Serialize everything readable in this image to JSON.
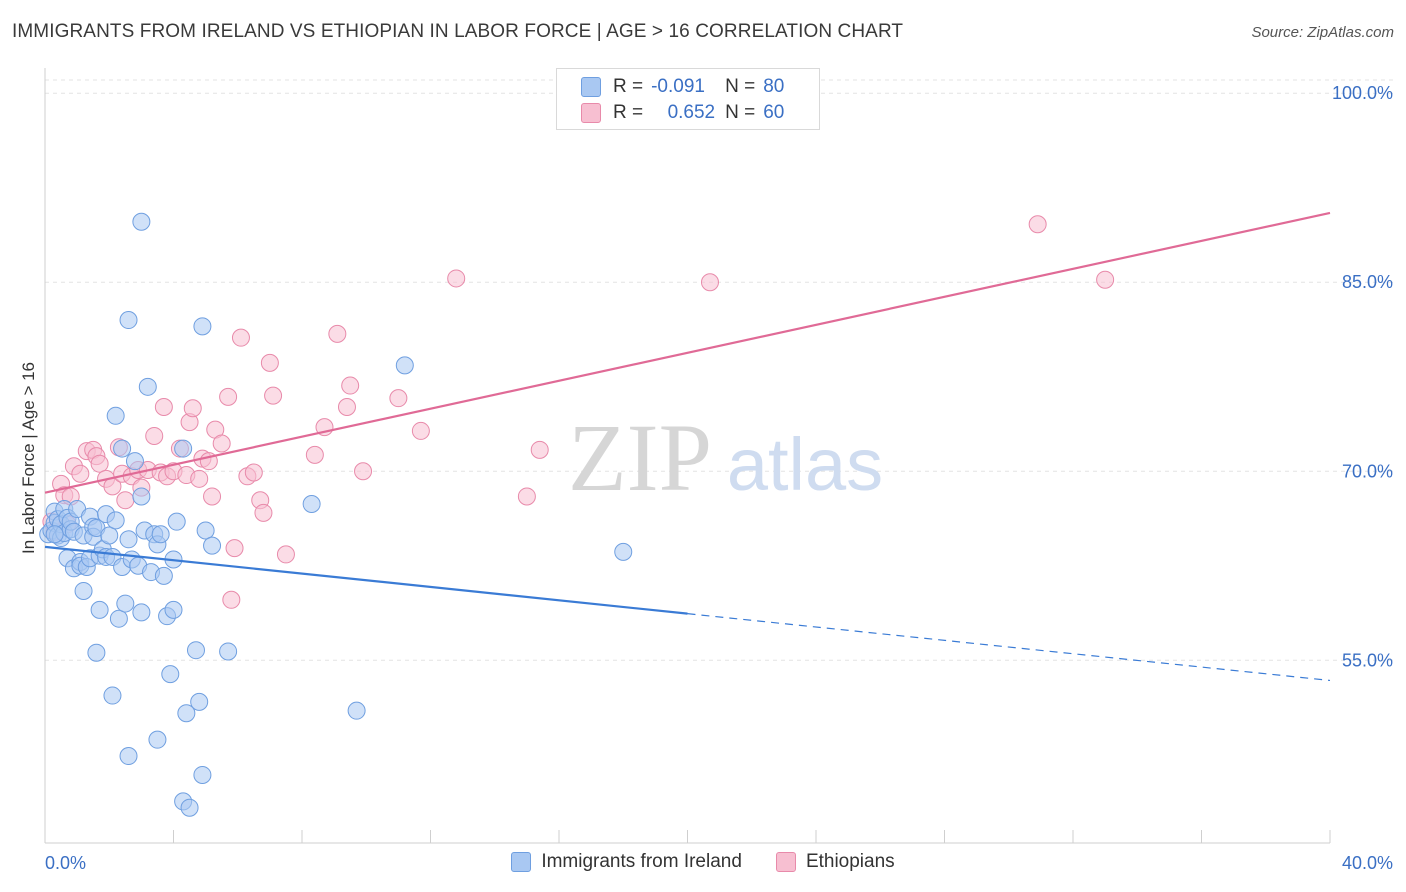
{
  "title": "IMMIGRANTS FROM IRELAND VS ETHIOPIAN IN LABOR FORCE | AGE > 16 CORRELATION CHART",
  "source": "Source: ZipAtlas.com",
  "watermark": {
    "zip": "ZIP",
    "atlas": "atlas"
  },
  "correlation_box": {
    "rows": [
      {
        "r_label": "R =",
        "r_value": "-0.091",
        "n_label": "N =",
        "n_value": "80",
        "color": "#a9c8f2",
        "border": "#6f9fe0"
      },
      {
        "r_label": "R =",
        "r_value": "0.652",
        "n_label": "N =",
        "n_value": "60",
        "color": "#f7bfd1",
        "border": "#e88aaa"
      }
    ]
  },
  "colors": {
    "blue": "#3a7bd5",
    "pink": "#e06a96",
    "blue_fill": "#a9c8f2",
    "pink_fill": "#f7bfd1",
    "axis_text": "#3a6fc4",
    "grid": "#e3e3e3"
  },
  "chart_data": {
    "type": "scatter",
    "title": "IMMIGRANTS FROM IRELAND VS ETHIOPIAN IN LABOR FORCE | AGE > 16 CORRELATION CHART",
    "xlabel": "",
    "ylabel": "In Labor Force | Age > 16",
    "xlim": [
      0,
      40
    ],
    "ylim": [
      40.5,
      102
    ],
    "x_tick_labels": [
      "0.0%",
      "40.0%"
    ],
    "y_ticks": [
      55,
      70,
      85,
      100
    ],
    "y_tick_labels": [
      "55.0%",
      "70.0%",
      "85.0%",
      "100.0%"
    ],
    "grid": true,
    "legend": "bottom-center",
    "series": [
      {
        "name": "Immigrants from Ireland",
        "color": "#3a7bd5",
        "trend": {
          "x": [
            0,
            20,
            40
          ],
          "y": [
            64.0,
            58.7,
            53.4
          ],
          "solid_until_x": 20
        },
        "points": [
          [
            0.1,
            65.0
          ],
          [
            0.2,
            65.3
          ],
          [
            0.3,
            66.8
          ],
          [
            0.3,
            65.9
          ],
          [
            0.4,
            64.9
          ],
          [
            0.4,
            66.2
          ],
          [
            0.5,
            64.7
          ],
          [
            0.5,
            65.8
          ],
          [
            0.6,
            67.0
          ],
          [
            0.6,
            65.1
          ],
          [
            0.7,
            66.3
          ],
          [
            0.7,
            63.1
          ],
          [
            0.8,
            65.4
          ],
          [
            0.8,
            66.0
          ],
          [
            0.9,
            65.2
          ],
          [
            0.9,
            62.3
          ],
          [
            1.0,
            67.0
          ],
          [
            1.1,
            62.8
          ],
          [
            1.1,
            62.5
          ],
          [
            1.2,
            60.5
          ],
          [
            1.2,
            64.9
          ],
          [
            1.3,
            62.4
          ],
          [
            1.4,
            66.4
          ],
          [
            1.4,
            63.1
          ],
          [
            1.5,
            65.6
          ],
          [
            1.5,
            64.8
          ],
          [
            1.6,
            65.5
          ],
          [
            1.6,
            55.6
          ],
          [
            1.7,
            63.3
          ],
          [
            1.7,
            59.0
          ],
          [
            1.8,
            63.8
          ],
          [
            1.9,
            63.2
          ],
          [
            1.9,
            66.6
          ],
          [
            2.0,
            64.9
          ],
          [
            2.1,
            63.2
          ],
          [
            2.1,
            52.2
          ],
          [
            2.2,
            66.1
          ],
          [
            2.2,
            74.4
          ],
          [
            2.3,
            58.3
          ],
          [
            2.4,
            62.4
          ],
          [
            2.4,
            71.8
          ],
          [
            2.5,
            59.5
          ],
          [
            2.6,
            64.6
          ],
          [
            2.6,
            47.4
          ],
          [
            2.7,
            63.0
          ],
          [
            2.8,
            70.8
          ],
          [
            2.9,
            62.5
          ],
          [
            3.0,
            68.0
          ],
          [
            3.0,
            58.8
          ],
          [
            3.1,
            65.3
          ],
          [
            3.2,
            76.7
          ],
          [
            3.3,
            62.0
          ],
          [
            3.4,
            65.0
          ],
          [
            3.5,
            64.2
          ],
          [
            3.5,
            48.7
          ],
          [
            3.6,
            65.0
          ],
          [
            3.7,
            61.7
          ],
          [
            3.8,
            58.5
          ],
          [
            3.9,
            53.9
          ],
          [
            4.0,
            63.0
          ],
          [
            4.0,
            59.0
          ],
          [
            4.1,
            66.0
          ],
          [
            4.3,
            71.8
          ],
          [
            4.3,
            43.8
          ],
          [
            4.4,
            50.8
          ],
          [
            4.5,
            43.3
          ],
          [
            4.7,
            55.8
          ],
          [
            4.8,
            51.7
          ],
          [
            4.9,
            45.9
          ],
          [
            4.9,
            81.5
          ],
          [
            5.0,
            65.3
          ],
          [
            5.2,
            64.1
          ],
          [
            5.7,
            55.7
          ],
          [
            2.6,
            82.0
          ],
          [
            3.0,
            89.8
          ],
          [
            8.3,
            67.4
          ],
          [
            9.7,
            51.0
          ],
          [
            11.2,
            78.4
          ],
          [
            18.0,
            63.6
          ],
          [
            0.3,
            65.0
          ]
        ]
      },
      {
        "name": "Ethiopians",
        "color": "#e06a96",
        "trend": {
          "x": [
            0,
            40
          ],
          "y": [
            68.3,
            90.5
          ]
        },
        "points": [
          [
            0.2,
            66.0
          ],
          [
            0.3,
            65.2
          ],
          [
            0.5,
            69.0
          ],
          [
            0.6,
            68.1
          ],
          [
            0.7,
            65.8
          ],
          [
            0.8,
            68.0
          ],
          [
            0.9,
            70.4
          ],
          [
            1.1,
            69.8
          ],
          [
            1.3,
            71.6
          ],
          [
            1.5,
            71.7
          ],
          [
            1.6,
            71.2
          ],
          [
            1.7,
            70.6
          ],
          [
            1.9,
            69.4
          ],
          [
            2.1,
            68.8
          ],
          [
            2.3,
            71.9
          ],
          [
            2.4,
            69.8
          ],
          [
            2.5,
            67.7
          ],
          [
            2.7,
            69.6
          ],
          [
            2.9,
            70.1
          ],
          [
            3.0,
            68.7
          ],
          [
            3.2,
            70.1
          ],
          [
            3.4,
            72.8
          ],
          [
            3.6,
            69.9
          ],
          [
            3.7,
            75.1
          ],
          [
            3.8,
            69.6
          ],
          [
            4.0,
            70.0
          ],
          [
            4.2,
            71.8
          ],
          [
            4.4,
            69.7
          ],
          [
            4.5,
            73.9
          ],
          [
            4.6,
            75.0
          ],
          [
            4.8,
            69.4
          ],
          [
            4.9,
            71.0
          ],
          [
            5.1,
            70.8
          ],
          [
            5.2,
            68.0
          ],
          [
            5.3,
            73.3
          ],
          [
            5.5,
            72.2
          ],
          [
            5.7,
            75.9
          ],
          [
            5.8,
            59.8
          ],
          [
            5.9,
            63.9
          ],
          [
            6.1,
            80.6
          ],
          [
            6.3,
            69.6
          ],
          [
            6.5,
            69.9
          ],
          [
            6.7,
            67.7
          ],
          [
            6.8,
            66.7
          ],
          [
            7.0,
            78.6
          ],
          [
            7.1,
            76.0
          ],
          [
            7.5,
            63.4
          ],
          [
            8.4,
            71.3
          ],
          [
            8.7,
            73.5
          ],
          [
            9.1,
            80.9
          ],
          [
            9.4,
            75.1
          ],
          [
            9.5,
            76.8
          ],
          [
            9.9,
            70.0
          ],
          [
            11.0,
            75.8
          ],
          [
            11.7,
            73.2
          ],
          [
            12.8,
            85.3
          ],
          [
            15.0,
            68.0
          ],
          [
            15.4,
            71.7
          ],
          [
            20.7,
            85.0
          ],
          [
            30.9,
            89.6
          ]
        ]
      }
    ]
  },
  "extra_points": [
    [
      33.0,
      85.2
    ]
  ]
}
